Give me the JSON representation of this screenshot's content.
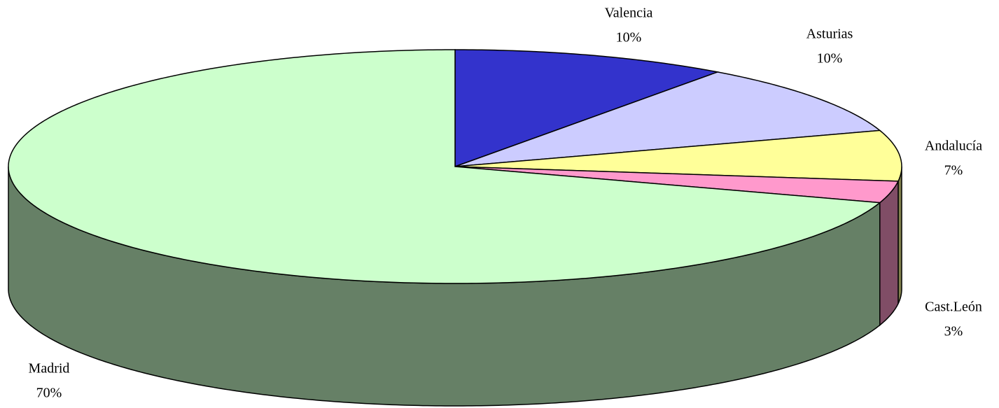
{
  "chart_data": {
    "type": "pie",
    "categories": [
      "Valencia",
      "Asturias",
      "Andalucía",
      "Cast.León",
      "Madrid"
    ],
    "values": [
      10,
      10,
      7,
      3,
      70
    ],
    "value_labels": [
      "10%",
      "10%",
      "7%",
      "3%",
      "70%"
    ],
    "colors": [
      "#3333cc",
      "#ccccff",
      "#ffff99",
      "#ff99cc",
      "#ccffcc"
    ]
  }
}
